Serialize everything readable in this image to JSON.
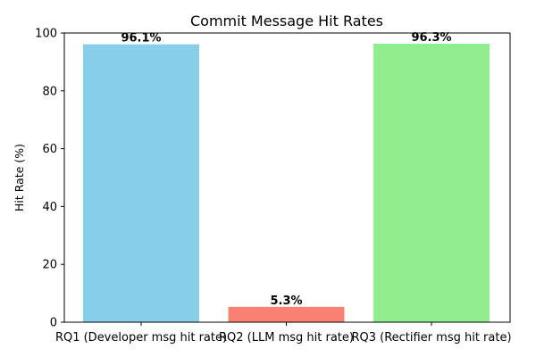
{
  "chart_data": {
    "type": "bar",
    "title": "Commit Message Hit Rates",
    "xlabel": "",
    "ylabel": "Hit Rate (%)",
    "ylim": [
      0,
      100
    ],
    "yticks": [
      0,
      20,
      40,
      60,
      80,
      100
    ],
    "categories": [
      "RQ1 (Developer msg hit rate)",
      "RQ2 (LLM msg hit rate)",
      "RQ3 (Rectifier msg hit rate)"
    ],
    "values": [
      96.1,
      5.3,
      96.3
    ],
    "data_labels": [
      "96.1%",
      "5.3%",
      "96.3%"
    ],
    "colors": [
      "#87CEEB",
      "#FA8072",
      "#90EE90"
    ],
    "grid": false,
    "legend": "none"
  }
}
